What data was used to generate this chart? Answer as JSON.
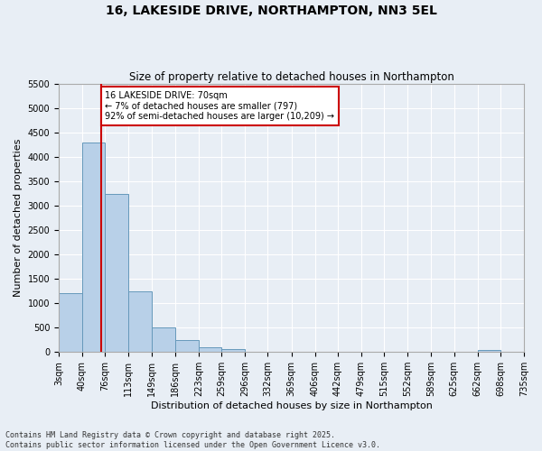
{
  "title": "16, LAKESIDE DRIVE, NORTHAMPTON, NN3 5EL",
  "subtitle": "Size of property relative to detached houses in Northampton",
  "xlabel": "Distribution of detached houses by size in Northampton",
  "ylabel": "Number of detached properties",
  "bar_edges": [
    3,
    40,
    76,
    113,
    149,
    186,
    223,
    259,
    296,
    332,
    369,
    406,
    442,
    479,
    515,
    552,
    589,
    625,
    662,
    698,
    735
  ],
  "bar_heights": [
    1200,
    4300,
    3250,
    1250,
    500,
    250,
    100,
    60,
    0,
    0,
    0,
    0,
    0,
    0,
    0,
    0,
    0,
    0,
    50,
    0
  ],
  "bar_color": "#b8d0e8",
  "bar_edgecolor": "#6699bb",
  "property_line_x": 70,
  "property_line_color": "#cc0000",
  "annotation_text": "16 LAKESIDE DRIVE: 70sqm\n← 7% of detached houses are smaller (797)\n92% of semi-detached houses are larger (10,209) →",
  "annotation_box_color": "#ffffff",
  "annotation_box_edgecolor": "#cc0000",
  "ylim": [
    0,
    5500
  ],
  "yticks": [
    0,
    500,
    1000,
    1500,
    2000,
    2500,
    3000,
    3500,
    4000,
    4500,
    5000,
    5500
  ],
  "footer_text": "Contains HM Land Registry data © Crown copyright and database right 2025.\nContains public sector information licensed under the Open Government Licence v3.0.",
  "background_color": "#e8eef5",
  "plot_background": "#e8eef5",
  "title_fontsize": 10,
  "subtitle_fontsize": 8.5,
  "tick_label_fontsize": 7,
  "axis_label_fontsize": 8,
  "footer_fontsize": 6
}
